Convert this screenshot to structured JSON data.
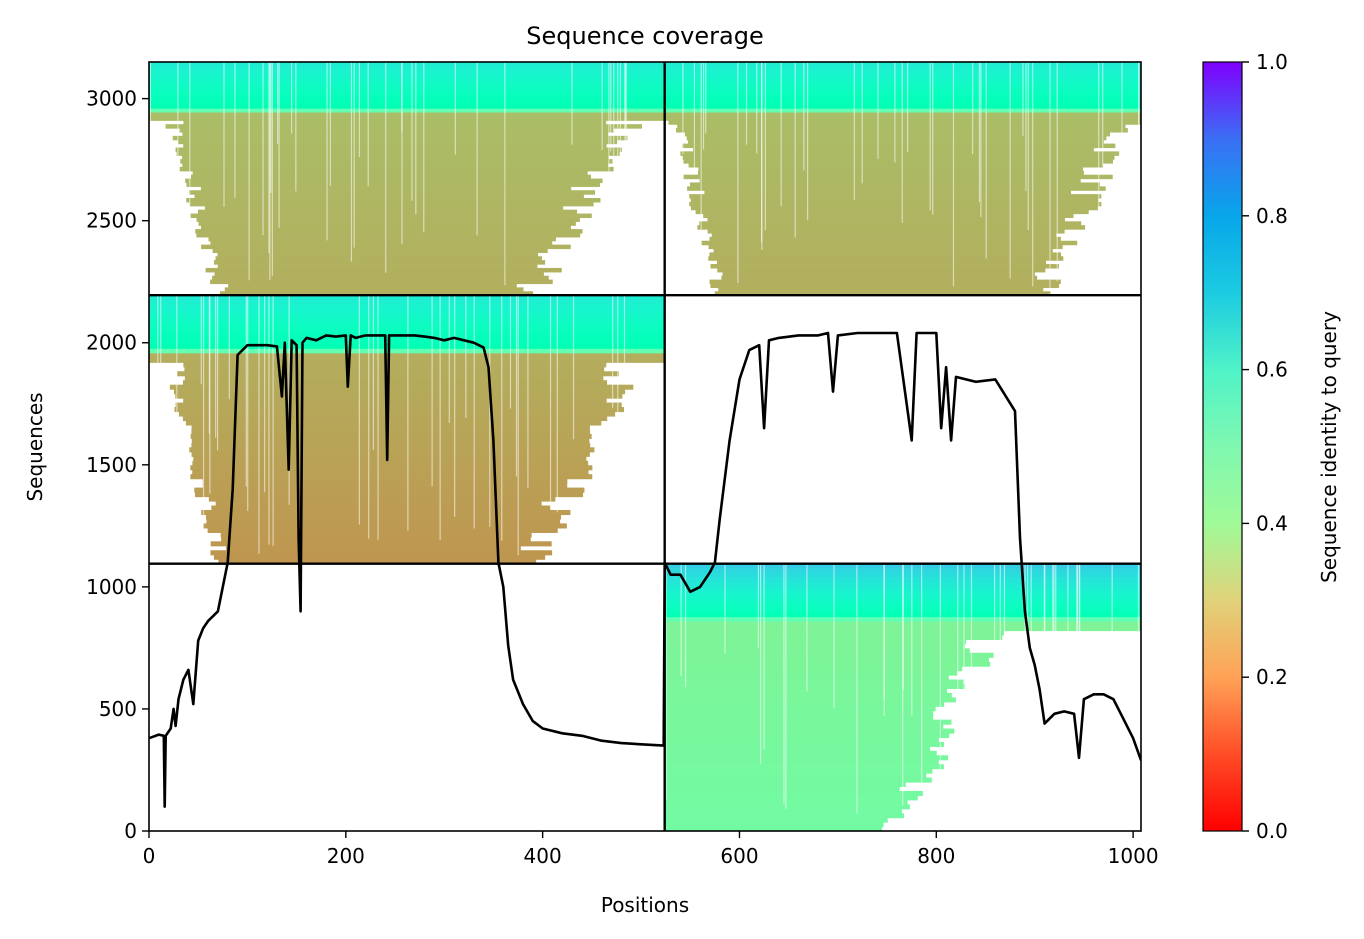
{
  "chart_data": {
    "type": "heatmap",
    "title": "Sequence coverage",
    "xlabel": "Positions",
    "ylabel": "Sequences",
    "xlim": [
      0,
      1008
    ],
    "ylim": [
      0,
      3150
    ],
    "x_ticks": [
      0,
      200,
      400,
      600,
      800,
      1000
    ],
    "y_ticks": [
      0,
      500,
      1000,
      1500,
      2000,
      2500,
      3000
    ],
    "grid": false,
    "boundaries": {
      "vertical": [
        524
      ],
      "horizontal": [
        1095,
        2195
      ]
    },
    "blocks": [
      {
        "x_range": [
          0,
          524
        ],
        "y_range": [
          2195,
          3150
        ],
        "identity": [
          0.62,
          0.22
        ]
      },
      {
        "x_range": [
          524,
          1008
        ],
        "y_range": [
          2195,
          3150
        ],
        "identity": [
          0.62,
          0.22
        ]
      },
      {
        "x_range": [
          0,
          524
        ],
        "y_range": [
          1095,
          2195
        ],
        "identity": [
          0.62,
          0.18
        ]
      },
      {
        "x_range": [
          524,
          1008
        ],
        "y_range": [
          0,
          1095
        ],
        "identity": [
          0.7,
          0.42
        ]
      }
    ],
    "coverage_line": {
      "x": [
        0,
        10,
        15,
        16,
        17,
        22,
        25,
        27,
        30,
        35,
        40,
        45,
        50,
        55,
        60,
        65,
        70,
        75,
        80,
        85,
        90,
        100,
        110,
        120,
        130,
        135,
        138,
        142,
        145,
        150,
        152,
        154,
        156,
        160,
        170,
        180,
        190,
        200,
        202,
        205,
        210,
        220,
        230,
        240,
        242,
        244,
        250,
        260,
        270,
        280,
        290,
        300,
        310,
        320,
        330,
        340,
        345,
        350,
        355,
        360,
        365,
        370,
        380,
        390,
        400,
        420,
        440,
        460,
        480,
        500,
        523,
        524,
        530,
        540,
        550,
        560,
        570,
        575,
        580,
        590,
        600,
        610,
        620,
        625,
        630,
        640,
        660,
        680,
        690,
        695,
        700,
        720,
        740,
        760,
        775,
        780,
        800,
        805,
        810,
        815,
        820,
        840,
        860,
        880,
        885,
        890,
        895,
        900,
        905,
        910,
        920,
        930,
        940,
        945,
        950,
        960,
        970,
        980,
        990,
        1000,
        1008
      ],
      "y": [
        380,
        395,
        390,
        100,
        390,
        420,
        500,
        430,
        540,
        620,
        660,
        520,
        780,
        830,
        860,
        880,
        900,
        1000,
        1100,
        1400,
        1950,
        1990,
        1990,
        1990,
        1985,
        1780,
        2000,
        1480,
        2010,
        1990,
        1200,
        900,
        2000,
        2020,
        2010,
        2030,
        2025,
        2030,
        1820,
        2030,
        2020,
        2030,
        2030,
        2030,
        1520,
        2030,
        2030,
        2030,
        2030,
        2025,
        2020,
        2010,
        2020,
        2010,
        2000,
        1980,
        1900,
        1600,
        1100,
        1000,
        760,
        620,
        520,
        450,
        420,
        400,
        390,
        370,
        360,
        355,
        350,
        1100,
        1050,
        1050,
        980,
        1000,
        1060,
        1100,
        1280,
        1600,
        1850,
        1970,
        1990,
        1650,
        2010,
        2020,
        2030,
        2030,
        2040,
        1800,
        2030,
        2040,
        2040,
        2040,
        1600,
        2040,
        2040,
        1650,
        1900,
        1600,
        1860,
        1840,
        1850,
        1720,
        1200,
        900,
        750,
        680,
        580,
        440,
        480,
        490,
        480,
        300,
        540,
        560,
        560,
        540,
        460,
        380,
        290
      ]
    },
    "colorbar": {
      "label": "Sequence identity to query",
      "ticks": [
        "0.0",
        "0.2",
        "0.4",
        "0.6",
        "0.8",
        "1.0"
      ],
      "range": [
        0,
        1
      ],
      "colormap": "rainbow"
    }
  }
}
